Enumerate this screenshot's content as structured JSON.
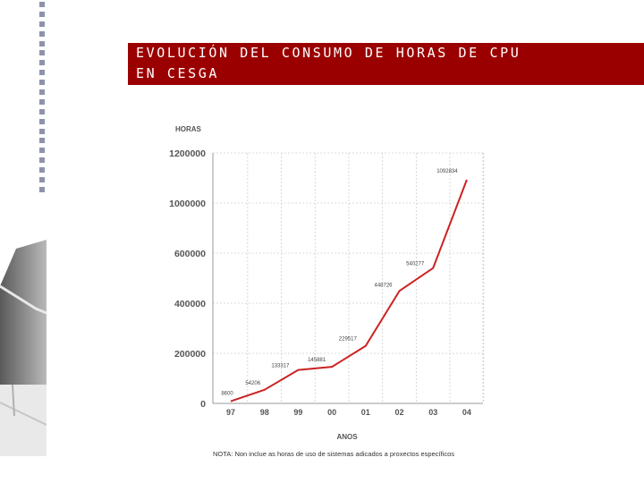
{
  "slide": {
    "title_line1": "EVOLUCIÓN DEL CONSUMO DE HORAS DE CPU",
    "title_line2": "EN CESGA",
    "note": "NOTA: Non inclue as horas de uso de sistemas adicados a proxectos específicos"
  },
  "colors": {
    "title_bg": "#9b0000",
    "line": "#cc2222",
    "dots": "#8d93ad"
  },
  "chart_data": {
    "type": "line",
    "ylabel": "HORAS",
    "xlabel": "ANOS",
    "categories": [
      "97",
      "98",
      "99",
      "00",
      "01",
      "02",
      "03",
      "04"
    ],
    "values": [
      8600,
      54206,
      133317,
      145881,
      229517,
      448726,
      540277,
      1092834
    ],
    "data_labels": [
      "8600",
      "54206",
      "133317",
      "145881",
      "229517",
      "448726",
      "540277",
      "1092834"
    ],
    "y_tick_labels": [
      "0",
      "200000",
      "400000",
      "600000",
      "1000000",
      "1200000"
    ],
    "y_tick_values": [
      0,
      200000,
      400000,
      600000,
      1000000,
      1200000
    ],
    "ylim": [
      0,
      1200000
    ],
    "grid": true
  }
}
